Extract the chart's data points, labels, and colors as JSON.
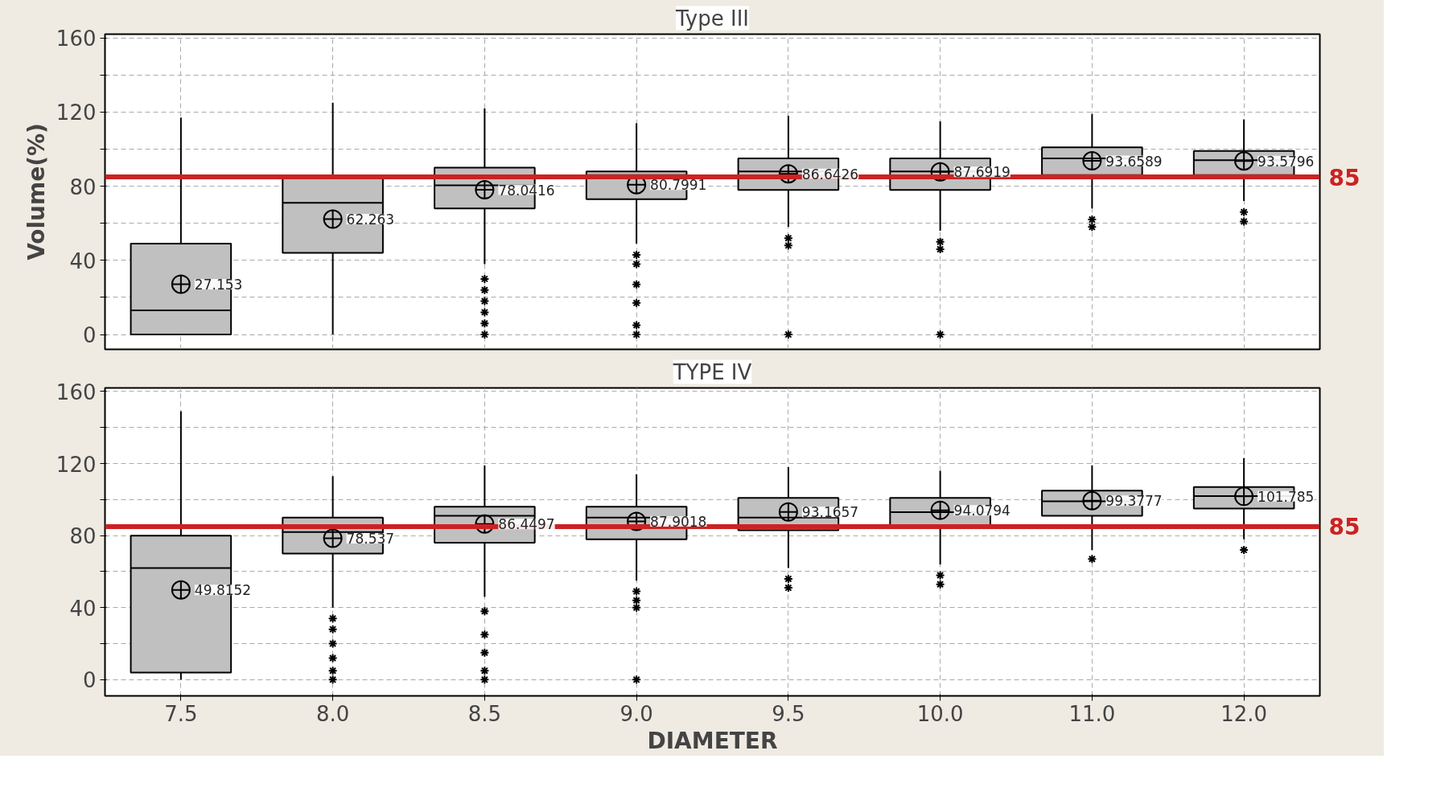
{
  "chart_data": [
    {
      "type": "box",
      "title": "Type III",
      "ylabel": "Volume(%)",
      "color": "#c0c0c0",
      "categories": [
        "7.5",
        "8.0",
        "8.5",
        "9.0",
        "9.5",
        "10.0",
        "11.0",
        "12.0"
      ],
      "boxes": [
        {
          "low": 0,
          "q1": 0,
          "median": 13,
          "q3": 49,
          "high": 117,
          "mean": 27.153
        },
        {
          "low": 0,
          "q1": 44,
          "median": 71,
          "q3": 85,
          "high": 125,
          "mean": 62.263
        },
        {
          "low": 38,
          "q1": 68,
          "median": 80.5,
          "q3": 90,
          "high": 122,
          "mean": 78.0416,
          "outliers": [
            30,
            24,
            18,
            12,
            6,
            0
          ]
        },
        {
          "low": 49,
          "q1": 73,
          "median": 86,
          "q3": 88,
          "high": 114,
          "mean": 80.7991,
          "outliers": [
            43,
            38,
            27,
            17,
            5,
            0
          ]
        },
        {
          "low": 58,
          "q1": 78,
          "median": 88,
          "q3": 95,
          "high": 118,
          "mean": 86.6426,
          "outliers": [
            52,
            48,
            0
          ]
        },
        {
          "low": 56,
          "q1": 78,
          "median": 88,
          "q3": 95,
          "high": 115,
          "mean": 87.6919,
          "outliers": [
            50,
            46,
            0
          ]
        },
        {
          "low": 68,
          "q1": 86,
          "median": 95,
          "q3": 101,
          "high": 119,
          "mean": 93.6589,
          "outliers": [
            62,
            58
          ]
        },
        {
          "low": 72,
          "q1": 86,
          "median": 94,
          "q3": 99,
          "high": 116,
          "mean": 93.5796,
          "outliers": [
            66,
            61
          ]
        }
      ],
      "annotations": [
        "27.153",
        "62.263",
        "78.0416",
        "80.7991",
        "86.6426",
        "87.6919",
        "93.6589",
        "93.5796"
      ],
      "ylim": [
        -8,
        162
      ],
      "yticks": [
        0,
        {
          "value": 20,
          "label": null
        },
        40,
        {
          "value": 60,
          "label": null
        },
        80,
        {
          "value": 100,
          "label": null
        },
        120,
        {
          "value": 140,
          "label": null
        },
        160
      ],
      "tick_labels": "y",
      "grid": true,
      "ref_lines": [
        {
          "axis": "y",
          "value": 85,
          "label": "85",
          "color": "#cc2222"
        }
      ]
    },
    {
      "type": "box",
      "title": "TYPE IV",
      "xlabel": "DIAMETER",
      "color": "#c0c0c0",
      "categories": [
        "7.5",
        "8.0",
        "8.5",
        "9.0",
        "9.5",
        "10.0",
        "11.0",
        "12.0"
      ],
      "boxes": [
        {
          "low": 0,
          "q1": 4,
          "median": 62,
          "q3": 80,
          "high": 149,
          "mean": 49.8152
        },
        {
          "low": 40,
          "q1": 70,
          "median": 82,
          "q3": 90,
          "high": 113,
          "mean": 78.537,
          "outliers": [
            34,
            28,
            20,
            12,
            5,
            0
          ]
        },
        {
          "low": 46,
          "q1": 76,
          "median": 91,
          "q3": 96,
          "high": 119,
          "mean": 86.4497,
          "outliers": [
            38,
            25,
            15,
            5,
            0
          ]
        },
        {
          "low": 55,
          "q1": 78,
          "median": 90,
          "q3": 96,
          "high": 114,
          "mean": 87.9018,
          "outliers": [
            49,
            44,
            40,
            0
          ]
        },
        {
          "low": 62,
          "q1": 83,
          "median": 90,
          "q3": 101,
          "high": 118,
          "mean": 93.1657,
          "outliers": [
            56,
            51
          ]
        },
        {
          "low": 64,
          "q1": 85,
          "median": 93,
          "q3": 101,
          "high": 116,
          "mean": 94.0794,
          "outliers": [
            58,
            53
          ]
        },
        {
          "low": 72,
          "q1": 91,
          "median": 99,
          "q3": 105,
          "high": 119,
          "mean": 99.3777,
          "outliers": [
            67
          ]
        },
        {
          "low": 78,
          "q1": 95,
          "median": 102,
          "q3": 107,
          "high": 123,
          "mean": 101.785,
          "outliers": [
            72
          ]
        }
      ],
      "annotations": [
        "49.8152",
        "78.537",
        "86.4497",
        "87.9018",
        "93.1657",
        "94.0794",
        "99.3777",
        "101.785"
      ],
      "ylim": [
        -9,
        162
      ],
      "yticks": [
        0,
        {
          "value": 20,
          "label": null
        },
        40,
        {
          "value": 60,
          "label": null
        },
        80,
        {
          "value": 100,
          "label": null
        },
        120,
        {
          "value": 140,
          "label": null
        },
        160
      ],
      "grid": true,
      "ref_lines": [
        {
          "axis": "y",
          "value": 85,
          "label": "85",
          "color": "#cc2222"
        }
      ]
    }
  ]
}
